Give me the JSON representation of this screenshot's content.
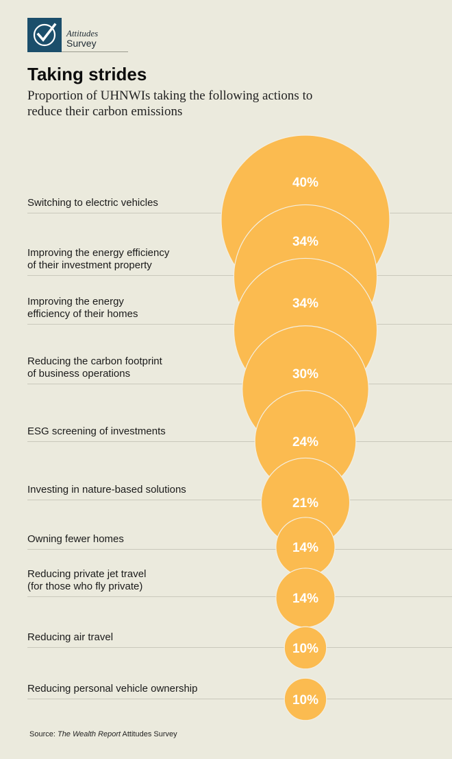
{
  "logo": {
    "line1": "Attitudes",
    "line2": "Survey"
  },
  "title": "Taking strides",
  "subtitle": "Proportion of UHNWIs taking the following actions to reduce their carbon emissions",
  "source": {
    "prefix": "Source: ",
    "publication": "The Wealth Report",
    "suffix": " Attitudes Survey"
  },
  "colors": {
    "background": "#ebeadd",
    "bubble": "#fbbb50",
    "bubble_outline": "#f3efe2",
    "bubble_label": "#ffffff",
    "rule": "#c9c8bb",
    "logo": "#1b4e6b"
  },
  "chart_data": {
    "type": "bubble",
    "value_suffix": "%",
    "categories": [
      "Switching to electric vehicles",
      "Improving the energy efficiency\nof their investment property",
      "Improving the energy\nefficiency of their homes",
      "Reducing the carbon footprint\nof business operations",
      "ESG screening of investments",
      "Investing in nature-based solutions",
      "Owning fewer homes",
      "Reducing private jet travel\n(for those who fly private)",
      "Reducing air travel",
      "Reducing personal vehicle ownership"
    ],
    "values": [
      40,
      34,
      34,
      30,
      24,
      21,
      14,
      14,
      10,
      10
    ]
  }
}
